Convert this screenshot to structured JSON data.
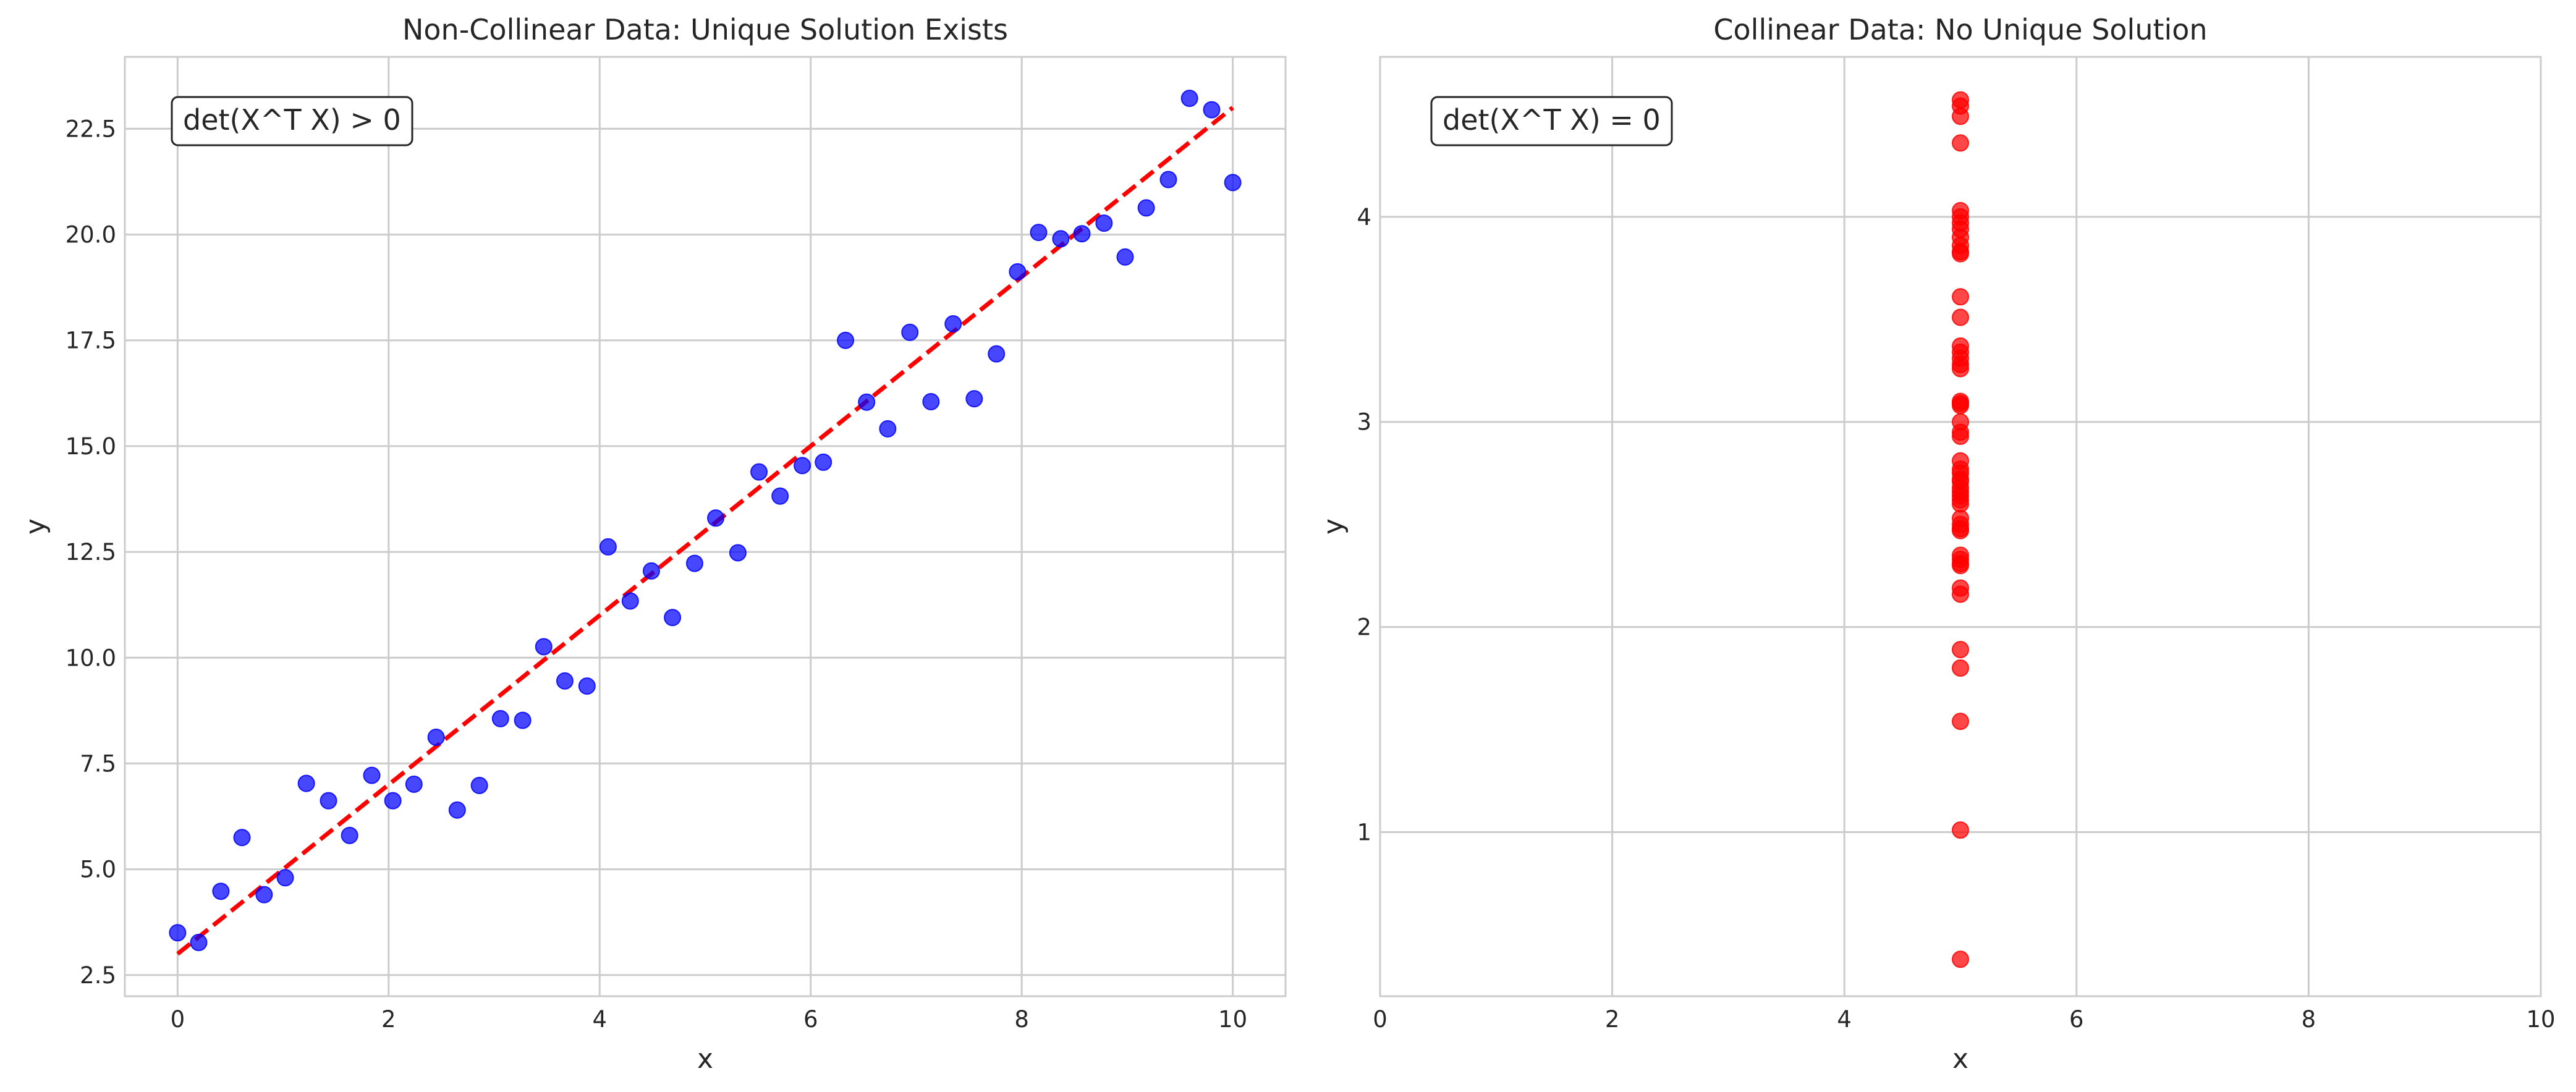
{
  "chart_data": [
    {
      "type": "scatter",
      "title": "Non-Collinear Data: Unique Solution Exists",
      "xlabel": "x",
      "ylabel": "y",
      "xlim": [
        -0.5,
        10.5
      ],
      "ylim": [
        2.0,
        24.2
      ],
      "xticks": [
        0,
        2,
        4,
        6,
        8,
        10
      ],
      "xtick_labels": [
        "0",
        "2",
        "4",
        "6",
        "8",
        "10"
      ],
      "yticks": [
        2.5,
        5.0,
        7.5,
        10.0,
        12.5,
        15.0,
        17.5,
        20.0,
        22.5
      ],
      "ytick_labels": [
        "2.5",
        "5.0",
        "7.5",
        "10.0",
        "12.5",
        "15.0",
        "17.5",
        "20.0",
        "22.5"
      ],
      "grid": true,
      "annotation": "det(X^T X) > 0",
      "marker_color": "#0000ff",
      "line_color": "#ff0000",
      "series": [
        {
          "name": "data",
          "x": [
            0.0,
            0.2,
            0.41,
            0.61,
            0.82,
            1.02,
            1.22,
            1.43,
            1.63,
            1.84,
            2.04,
            2.24,
            2.45,
            2.65,
            2.86,
            3.06,
            3.27,
            3.47,
            3.67,
            3.88,
            4.08,
            4.29,
            4.49,
            4.69,
            4.9,
            5.1,
            5.31,
            5.51,
            5.71,
            5.92,
            6.12,
            6.33,
            6.53,
            6.73,
            6.94,
            7.14,
            7.35,
            7.55,
            7.76,
            7.96,
            8.16,
            8.37,
            8.57,
            8.78,
            8.98,
            9.18,
            9.39,
            9.59,
            9.8,
            10.0
          ],
          "y": [
            3.5,
            3.27,
            4.48,
            5.75,
            4.4,
            4.8,
            7.03,
            6.62,
            5.8,
            7.22,
            6.62,
            7.01,
            8.12,
            6.4,
            6.98,
            8.56,
            8.52,
            10.26,
            9.45,
            9.33,
            12.62,
            11.34,
            12.05,
            10.95,
            12.23,
            13.3,
            12.48,
            14.39,
            13.82,
            14.54,
            14.62,
            17.5,
            16.04,
            15.41,
            17.69,
            16.05,
            17.89,
            16.12,
            17.18,
            19.12,
            20.05,
            19.9,
            20.02,
            20.27,
            19.47,
            20.63,
            21.3,
            23.22,
            22.95,
            21.23
          ]
        },
        {
          "name": "fit",
          "type": "line",
          "style": "dashed",
          "x": [
            0,
            10
          ],
          "y": [
            3.0,
            23.0
          ]
        }
      ]
    },
    {
      "type": "scatter",
      "title": "Collinear Data: No Unique Solution",
      "xlabel": "x",
      "ylabel": "y",
      "xlim": [
        0,
        10
      ],
      "ylim": [
        0.2,
        4.78
      ],
      "xticks": [
        0,
        2,
        4,
        6,
        8,
        10
      ],
      "xtick_labels": [
        "0",
        "2",
        "4",
        "6",
        "8",
        "10"
      ],
      "yticks": [
        1,
        2,
        3,
        4
      ],
      "ytick_labels": [
        "1",
        "2",
        "3",
        "4"
      ],
      "grid": true,
      "annotation": "det(X^T X) = 0",
      "marker_color": "#ff0000",
      "series": [
        {
          "name": "data",
          "x": [
            5,
            5,
            5,
            5,
            5,
            5,
            5,
            5,
            5,
            5,
            5,
            5,
            5,
            5,
            5,
            5,
            5,
            5,
            5,
            5,
            5,
            5,
            5,
            5,
            5,
            5,
            5,
            5,
            5,
            5,
            5,
            5,
            5,
            5,
            5,
            5,
            5,
            5,
            5,
            5,
            5,
            5,
            5,
            5,
            5,
            5,
            5,
            5,
            5,
            5
          ],
          "y": [
            4.57,
            4.54,
            4.49,
            4.36,
            4.03,
            4.0,
            3.97,
            3.94,
            3.9,
            3.83,
            3.82,
            3.61,
            3.51,
            3.37,
            3.34,
            3.31,
            3.28,
            3.1,
            3.09,
            3.0,
            2.95,
            2.93,
            2.81,
            2.77,
            2.75,
            2.71,
            2.68,
            2.66,
            2.62,
            2.6,
            2.53,
            2.5,
            2.47,
            2.35,
            2.33,
            2.3,
            2.19,
            2.16,
            1.89,
            1.8,
            1.54,
            1.01,
            0.38,
            3.26,
            3.86,
            3.08,
            2.72,
            2.64,
            2.48,
            2.31
          ]
        }
      ]
    }
  ]
}
